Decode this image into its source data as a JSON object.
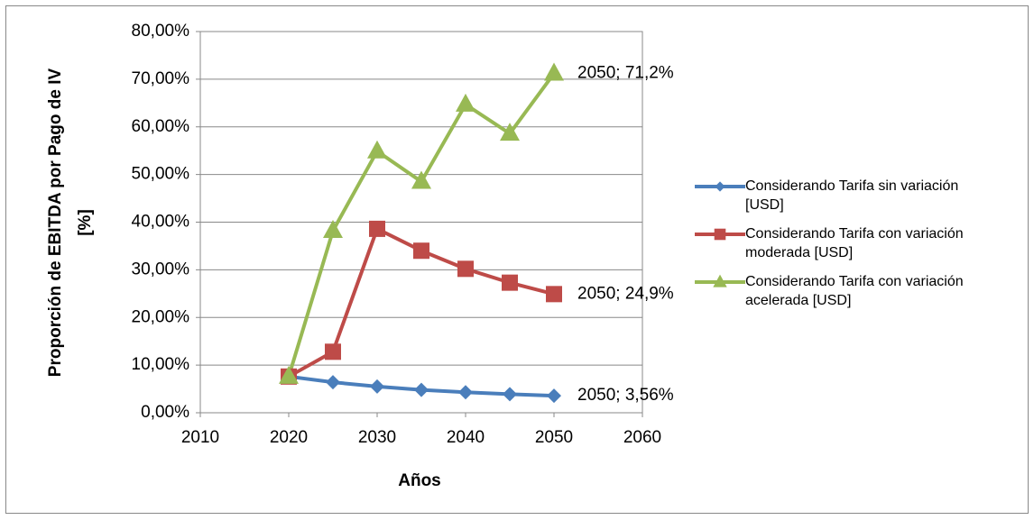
{
  "chart_data": {
    "type": "line",
    "x_label": "Años",
    "y_label": [
      "Proporción de EBITDA por Pago de IV",
      "[%]"
    ],
    "x": [
      2020,
      2025,
      2030,
      2035,
      2040,
      2045,
      2050
    ],
    "xlim": [
      2010,
      2060
    ],
    "xticks": [
      2010,
      2020,
      2030,
      2040,
      2050,
      2060
    ],
    "ylim": [
      0,
      80
    ],
    "yticks": [
      {
        "value": 0,
        "label": "0,00%"
      },
      {
        "value": 10,
        "label": "10,00%"
      },
      {
        "value": 20,
        "label": "20,00%"
      },
      {
        "value": 30,
        "label": "30,00%"
      },
      {
        "value": 40,
        "label": "40,00%"
      },
      {
        "value": 50,
        "label": "50,00%"
      },
      {
        "value": 60,
        "label": "60,00%"
      },
      {
        "value": 70,
        "label": "70,00%"
      },
      {
        "value": 80,
        "label": "80,00%"
      }
    ],
    "grid": true,
    "legend": "right",
    "series": [
      {
        "name": "Considerando Tarifa sin variación [USD]",
        "color": "#4a7ebb",
        "marker": "diamond",
        "values": [
          7.6,
          6.4,
          5.5,
          4.8,
          4.3,
          3.9,
          3.56
        ],
        "value_labels": [
          null,
          null,
          null,
          null,
          null,
          null,
          "2050; 3,56%"
        ]
      },
      {
        "name": "Considerando Tarifa con variación moderada [USD]",
        "color": "#be4b48",
        "marker": "square",
        "values": [
          7.6,
          12.8,
          38.6,
          34.0,
          30.2,
          27.3,
          24.9
        ],
        "value_labels": [
          null,
          null,
          null,
          null,
          null,
          null,
          "2050; 24,9%"
        ]
      },
      {
        "name": "Considerando Tarifa con variación acelerada [USD]",
        "color": "#98b954",
        "marker": "triangle",
        "values": [
          7.6,
          38.2,
          54.9,
          48.5,
          64.7,
          58.6,
          71.2
        ],
        "value_labels": [
          null,
          null,
          null,
          null,
          null,
          null,
          "2050; 71,2%"
        ]
      }
    ]
  }
}
